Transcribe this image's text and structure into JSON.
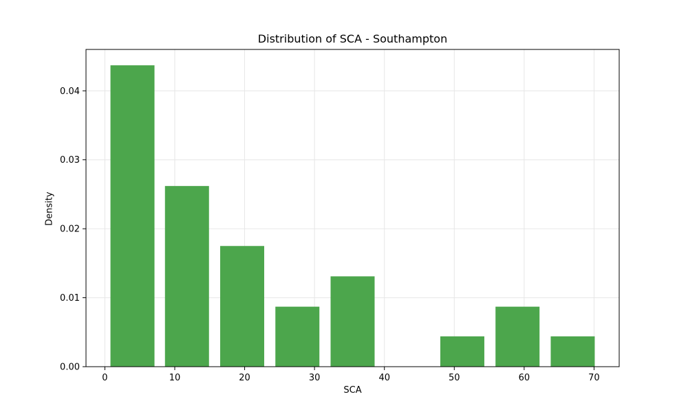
{
  "chart_data": {
    "type": "bar",
    "title": "Distribution of SCA - Southampton",
    "xlabel": "SCA",
    "ylabel": "Density",
    "bins": [
      {
        "start": 0.8,
        "end": 7.1,
        "value": 0.0437
      },
      {
        "start": 8.6,
        "end": 14.9,
        "value": 0.0262
      },
      {
        "start": 16.5,
        "end": 22.8,
        "value": 0.0175
      },
      {
        "start": 24.4,
        "end": 30.7,
        "value": 0.0087
      },
      {
        "start": 32.3,
        "end": 38.6,
        "value": 0.0131
      },
      {
        "start": 40.2,
        "end": 46.5,
        "value": 0.0
      },
      {
        "start": 48.0,
        "end": 54.3,
        "value": 0.0044
      },
      {
        "start": 55.9,
        "end": 62.2,
        "value": 0.0087
      },
      {
        "start": 63.8,
        "end": 70.1,
        "value": 0.0044
      }
    ],
    "xlim": [
      -2.7,
      73.6
    ],
    "ylim": [
      0,
      0.046
    ],
    "xticks": [
      0,
      10,
      20,
      30,
      40,
      50,
      60,
      70
    ],
    "xtick_labels": [
      "0",
      "10",
      "20",
      "30",
      "40",
      "50",
      "60",
      "70"
    ],
    "yticks": [
      0,
      0.01,
      0.02,
      0.03,
      0.04
    ],
    "ytick_labels": [
      "0.00",
      "0.01",
      "0.02",
      "0.03",
      "0.04"
    ],
    "grid": true,
    "colors": {
      "bar": "#4ca64c",
      "grid": "#e6e6e6",
      "axis": "#000000"
    }
  }
}
